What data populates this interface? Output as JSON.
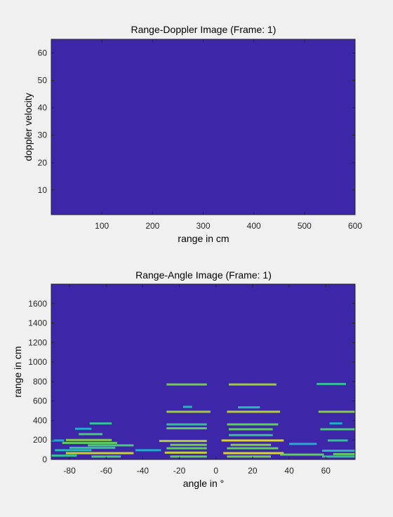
{
  "colors": {
    "figure_bg": "#f0f0f0",
    "colormap": [
      "#3e26a8",
      "#2e7ef7",
      "#1fb7c0",
      "#5ecc5e",
      "#a6cc3a",
      "#e8d62a",
      "#f9fb0e"
    ]
  },
  "chart_data": [
    {
      "type": "heatmap",
      "title": "Range-Doppler Image (Frame: 1)",
      "xlabel": "range in cm",
      "ylabel": "doppler velocity",
      "xlim": [
        0,
        600
      ],
      "ylim": [
        1,
        65
      ],
      "xticks": [
        100,
        200,
        300,
        400,
        500,
        600
      ],
      "xtick_labels": [
        "100",
        "200",
        "300",
        "400",
        "500",
        "600"
      ],
      "yticks": [
        10,
        20,
        30,
        40,
        50,
        60
      ],
      "ytick_labels": [
        "10",
        "20",
        "30",
        "40",
        "50",
        "60"
      ],
      "fill_level": 0,
      "bands": []
    },
    {
      "type": "heatmap",
      "title": "Range-Angle Image (Frame: 1)",
      "xlabel": "angle in °",
      "ylabel": "range in cm",
      "xlim": [
        -90,
        76
      ],
      "ylim": [
        0,
        1800
      ],
      "xticks": [
        -80,
        -60,
        -40,
        -20,
        0,
        20,
        40,
        60
      ],
      "xtick_labels": [
        "-80",
        "-60",
        "-40",
        "-20",
        "0",
        "20",
        "40",
        "60"
      ],
      "yticks": [
        0,
        200,
        400,
        600,
        800,
        1000,
        1200,
        1400,
        1600
      ],
      "ytick_labels": [
        "0",
        "200",
        "400",
        "600",
        "800",
        "1000",
        "1200",
        "1400",
        "1600"
      ],
      "fill_level": 0,
      "bands": [
        {
          "x0": -27,
          "x1": -5,
          "y": 770,
          "level": 0.55
        },
        {
          "x0": 7,
          "x1": 33,
          "y": 770,
          "level": 0.65
        },
        {
          "x0": 55,
          "x1": 71,
          "y": 775,
          "level": 0.4
        },
        {
          "x0": -27,
          "x1": -3,
          "y": 490,
          "level": 0.65
        },
        {
          "x0": 6,
          "x1": 35,
          "y": 490,
          "level": 0.7
        },
        {
          "x0": 56,
          "x1": 76,
          "y": 490,
          "level": 0.6
        },
        {
          "x0": -18,
          "x1": -13,
          "y": 540,
          "level": 0.35
        },
        {
          "x0": 12,
          "x1": 24,
          "y": 535,
          "level": 0.35
        },
        {
          "x0": -27,
          "x1": -5,
          "y": 360,
          "level": 0.4
        },
        {
          "x0": 6,
          "x1": 34,
          "y": 360,
          "level": 0.5
        },
        {
          "x0": -27,
          "x1": -5,
          "y": 320,
          "level": 0.5
        },
        {
          "x0": 7,
          "x1": 31,
          "y": 310,
          "level": 0.5
        },
        {
          "x0": 57,
          "x1": 76,
          "y": 310,
          "level": 0.45
        },
        {
          "x0": 62,
          "x1": 69,
          "y": 370,
          "level": 0.3
        },
        {
          "x0": -69,
          "x1": -57,
          "y": 370,
          "level": 0.4
        },
        {
          "x0": -77,
          "x1": -68,
          "y": 315,
          "level": 0.3
        },
        {
          "x0": -75,
          "x1": -62,
          "y": 260,
          "level": 0.45
        },
        {
          "x0": 7,
          "x1": 31,
          "y": 250,
          "level": 0.4
        },
        {
          "x0": -82,
          "x1": -57,
          "y": 200,
          "level": 0.6
        },
        {
          "x0": -31,
          "x1": -5,
          "y": 190,
          "level": 0.7
        },
        {
          "x0": 3,
          "x1": 37,
          "y": 195,
          "level": 0.8
        },
        {
          "x0": 61,
          "x1": 72,
          "y": 195,
          "level": 0.4
        },
        {
          "x0": -90,
          "x1": -83,
          "y": 195,
          "level": 0.3
        },
        {
          "x0": -84,
          "x1": -54,
          "y": 170,
          "level": 0.5
        },
        {
          "x0": -70,
          "x1": -45,
          "y": 145,
          "level": 0.45
        },
        {
          "x0": -25,
          "x1": -5,
          "y": 150,
          "level": 0.55
        },
        {
          "x0": 8,
          "x1": 30,
          "y": 150,
          "level": 0.6
        },
        {
          "x0": 40,
          "x1": 55,
          "y": 160,
          "level": 0.3
        },
        {
          "x0": -80,
          "x1": -55,
          "y": 120,
          "level": 0.4
        },
        {
          "x0": -27,
          "x1": -5,
          "y": 115,
          "level": 0.5
        },
        {
          "x0": 6,
          "x1": 34,
          "y": 115,
          "level": 0.5
        },
        {
          "x0": -88,
          "x1": -68,
          "y": 95,
          "level": 0.35
        },
        {
          "x0": -44,
          "x1": -30,
          "y": 95,
          "level": 0.3
        },
        {
          "x0": 58,
          "x1": 76,
          "y": 90,
          "level": 0.35
        },
        {
          "x0": -82,
          "x1": -45,
          "y": 65,
          "level": 0.75
        },
        {
          "x0": -28,
          "x1": -5,
          "y": 70,
          "level": 0.75
        },
        {
          "x0": 4,
          "x1": 37,
          "y": 65,
          "level": 0.8
        },
        {
          "x0": 35,
          "x1": 59,
          "y": 50,
          "level": 0.5
        },
        {
          "x0": 64,
          "x1": 76,
          "y": 55,
          "level": 0.5
        },
        {
          "x0": -90,
          "x1": -76,
          "y": 40,
          "level": 0.4
        },
        {
          "x0": -68,
          "x1": -52,
          "y": 30,
          "level": 0.45
        },
        {
          "x0": -25,
          "x1": -5,
          "y": 30,
          "level": 0.5
        },
        {
          "x0": 6,
          "x1": 30,
          "y": 30,
          "level": 0.55
        },
        {
          "x0": 58,
          "x1": 76,
          "y": 30,
          "level": 0.4
        }
      ]
    }
  ]
}
